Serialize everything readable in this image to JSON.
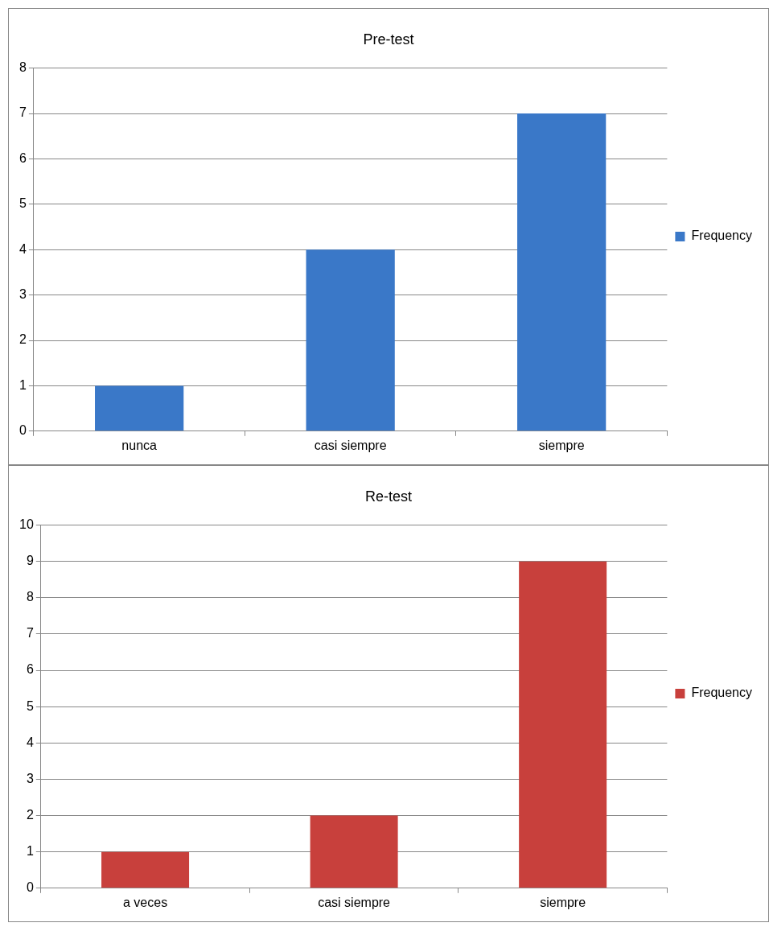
{
  "chart_data": [
    {
      "type": "bar",
      "title": "Pre-test",
      "categories": [
        "nunca",
        "casi siempre",
        "siempre"
      ],
      "series": [
        {
          "name": "Frequency",
          "color": "#3a78c8",
          "values": [
            1,
            4,
            7
          ]
        }
      ],
      "ylim": [
        0,
        8
      ],
      "yticks": [
        0,
        1,
        2,
        3,
        4,
        5,
        6,
        7,
        8
      ],
      "grid": "y",
      "legend": "right"
    },
    {
      "type": "bar",
      "title": "Re-test",
      "categories": [
        "a veces",
        "casi siempre",
        "siempre"
      ],
      "series": [
        {
          "name": "Frequency",
          "color": "#c8403c",
          "values": [
            1,
            2,
            9
          ]
        }
      ],
      "ylim": [
        0,
        10
      ],
      "yticks": [
        0,
        1,
        2,
        3,
        4,
        5,
        6,
        7,
        8,
        9,
        10
      ],
      "grid": "y",
      "legend": "right"
    }
  ]
}
